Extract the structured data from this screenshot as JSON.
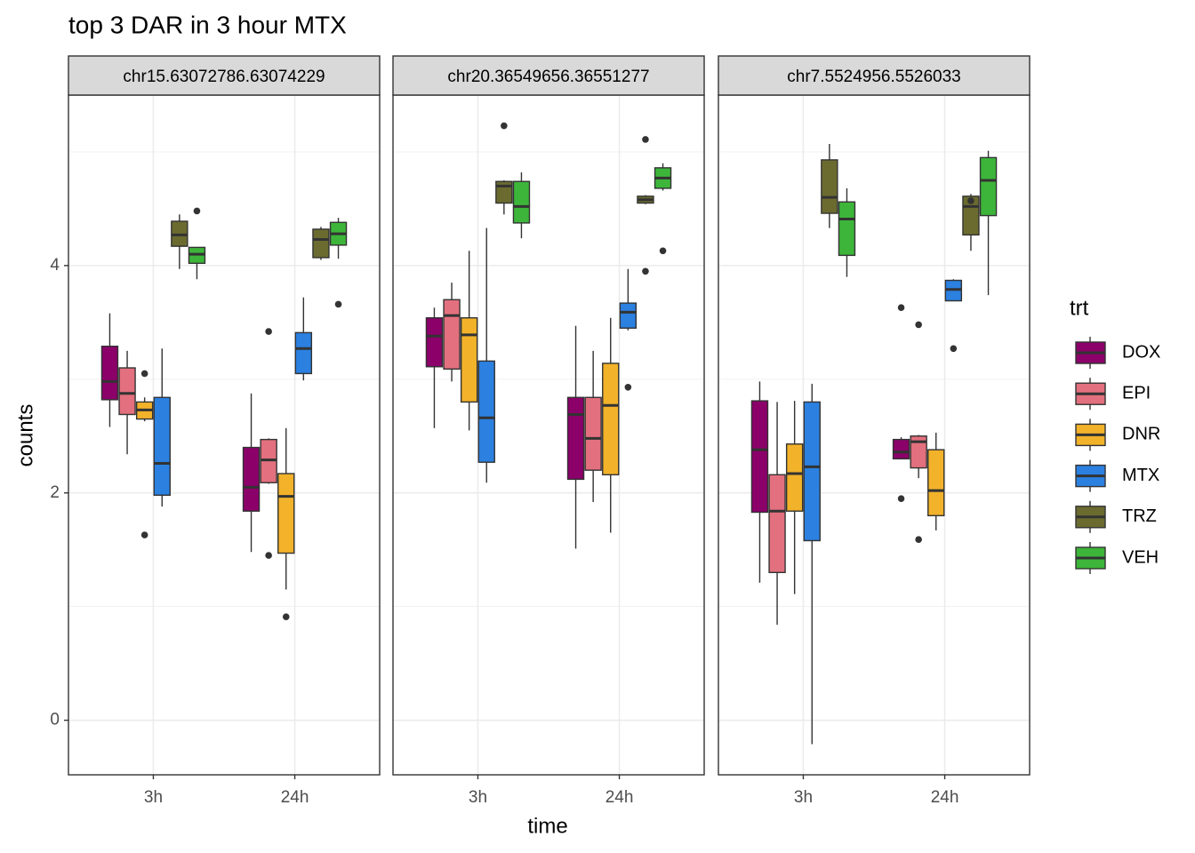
{
  "chart_data": {
    "type": "boxplot",
    "title": "top 3 DAR in 3 hour MTX",
    "xlabel": "time",
    "ylabel": "counts",
    "legend_title": "trt",
    "ylim": [
      -0.48,
      5.5
    ],
    "yticks": [
      0,
      2,
      4
    ],
    "grid": true,
    "categories": [
      "3h",
      "24h"
    ],
    "series": [
      {
        "name": "DOX",
        "color": "#8B0069"
      },
      {
        "name": "EPI",
        "color": "#E3707E"
      },
      {
        "name": "DNR",
        "color": "#F2B22A"
      },
      {
        "name": "MTX",
        "color": "#2B80E0"
      },
      {
        "name": "TRZ",
        "color": "#6B6B30"
      },
      {
        "name": "VEH",
        "color": "#3DB53A"
      }
    ],
    "panels": [
      {
        "label": "chr15.63072786.63074229",
        "boxes": [
          [
            {
              "min": 2.58,
              "q1": 2.82,
              "median": 2.98,
              "q3": 3.29,
              "max": 3.58
            },
            {
              "min": 1.48,
              "q1": 1.84,
              "median": 2.05,
              "q3": 2.4,
              "max": 2.875
            }
          ],
          [
            {
              "min": 2.34,
              "q1": 2.69,
              "median": 2.875,
              "q3": 3.1,
              "max": 3.25
            },
            {
              "min": 2.08,
              "q1": 2.09,
              "median": 2.29,
              "q3": 2.47,
              "max": 2.48,
              "outliers": [
                3.42,
                1.45
              ]
            }
          ],
          [
            {
              "min": 2.63,
              "q1": 2.65,
              "median": 2.73,
              "q3": 2.8,
              "max": 2.84,
              "outliers": [
                3.05,
                1.63
              ]
            },
            {
              "min": 1.15,
              "q1": 1.47,
              "median": 1.97,
              "q3": 2.17,
              "max": 2.57,
              "outliers": [
                0.91
              ]
            }
          ],
          [
            {
              "min": 1.88,
              "q1": 1.98,
              "median": 2.26,
              "q3": 2.84,
              "max": 3.27
            },
            {
              "min": 2.99,
              "q1": 3.05,
              "median": 3.27,
              "q3": 3.41,
              "max": 3.72
            }
          ],
          [
            {
              "min": 3.97,
              "q1": 4.17,
              "median": 4.27,
              "q3": 4.39,
              "max": 4.45
            },
            {
              "min": 4.05,
              "q1": 4.07,
              "median": 4.23,
              "q3": 4.32,
              "max": 4.34
            }
          ],
          [
            {
              "min": 3.88,
              "q1": 4.02,
              "median": 4.1,
              "q3": 4.16,
              "max": 4.16,
              "outliers": [
                4.48
              ]
            },
            {
              "min": 4.06,
              "q1": 4.18,
              "median": 4.28,
              "q3": 4.38,
              "max": 4.42,
              "outliers": [
                3.66
              ]
            }
          ]
        ]
      },
      {
        "label": "chr20.36549656.36551277",
        "boxes": [
          [
            {
              "min": 2.57,
              "q1": 3.11,
              "median": 3.38,
              "q3": 3.54,
              "max": 3.63
            },
            {
              "min": 1.51,
              "q1": 2.12,
              "median": 2.69,
              "q3": 2.84,
              "max": 3.47
            }
          ],
          [
            {
              "min": 2.98,
              "q1": 3.09,
              "median": 3.56,
              "q3": 3.7,
              "max": 3.85
            },
            {
              "min": 1.92,
              "q1": 2.2,
              "median": 2.48,
              "q3": 2.84,
              "max": 3.25
            }
          ],
          [
            {
              "min": 2.55,
              "q1": 2.8,
              "median": 3.39,
              "q3": 3.54,
              "max": 4.13
            },
            {
              "min": 1.65,
              "q1": 2.16,
              "median": 2.77,
              "q3": 3.14,
              "max": 3.54
            }
          ],
          [
            {
              "min": 2.09,
              "q1": 2.27,
              "median": 2.66,
              "q3": 3.16,
              "max": 4.33
            },
            {
              "min": 3.43,
              "q1": 3.45,
              "median": 3.59,
              "q3": 3.67,
              "max": 3.97,
              "outliers": [
                2.93
              ]
            }
          ],
          [
            {
              "min": 4.45,
              "q1": 4.55,
              "median": 4.7,
              "q3": 4.74,
              "max": 4.75,
              "outliers": [
                5.23
              ]
            },
            {
              "min": 4.54,
              "q1": 4.55,
              "median": 4.58,
              "q3": 4.61,
              "max": 4.62,
              "outliers": [
                5.11,
                3.95
              ]
            }
          ],
          [
            {
              "min": 4.24,
              "q1": 4.375,
              "median": 4.52,
              "q3": 4.74,
              "max": 4.82
            },
            {
              "min": 4.66,
              "q1": 4.68,
              "median": 4.77,
              "q3": 4.86,
              "max": 4.9,
              "outliers": [
                4.13
              ]
            }
          ]
        ]
      },
      {
        "label": "chr7.5524956.5526033",
        "boxes": [
          [
            {
              "min": 1.21,
              "q1": 1.83,
              "median": 2.38,
              "q3": 2.81,
              "max": 2.98
            },
            {
              "min": 2.3,
              "q1": 2.3,
              "median": 2.36,
              "q3": 2.47,
              "max": 2.49,
              "outliers": [
                3.63,
                1.95
              ]
            }
          ],
          [
            {
              "min": 0.84,
              "q1": 1.3,
              "median": 1.84,
              "q3": 2.16,
              "max": 2.8
            },
            {
              "min": 2.13,
              "q1": 2.22,
              "median": 2.45,
              "q3": 2.5,
              "max": 2.51,
              "outliers": [
                3.48,
                1.59
              ]
            }
          ],
          [
            {
              "min": 1.11,
              "q1": 1.84,
              "median": 2.17,
              "q3": 2.43,
              "max": 2.81
            },
            {
              "min": 1.67,
              "q1": 1.8,
              "median": 2.02,
              "q3": 2.38,
              "max": 2.53
            }
          ],
          [
            {
              "min": -0.21,
              "q1": 1.58,
              "median": 2.23,
              "q3": 2.8,
              "max": 2.96
            },
            {
              "min": 3.69,
              "q1": 3.69,
              "median": 3.79,
              "q3": 3.87,
              "max": 3.88,
              "outliers": [
                3.27
              ]
            }
          ],
          [
            {
              "min": 4.33,
              "q1": 4.46,
              "median": 4.6,
              "q3": 4.93,
              "max": 5.07
            },
            {
              "min": 4.13,
              "q1": 4.27,
              "median": 4.52,
              "q3": 4.61,
              "max": 4.63,
              "outliers": [
                4.57
              ]
            }
          ],
          [
            {
              "min": 3.9,
              "q1": 4.09,
              "median": 4.41,
              "q3": 4.56,
              "max": 4.68
            },
            {
              "min": 3.74,
              "q1": 4.44,
              "median": 4.75,
              "q3": 4.95,
              "max": 5.01
            }
          ]
        ]
      }
    ]
  }
}
